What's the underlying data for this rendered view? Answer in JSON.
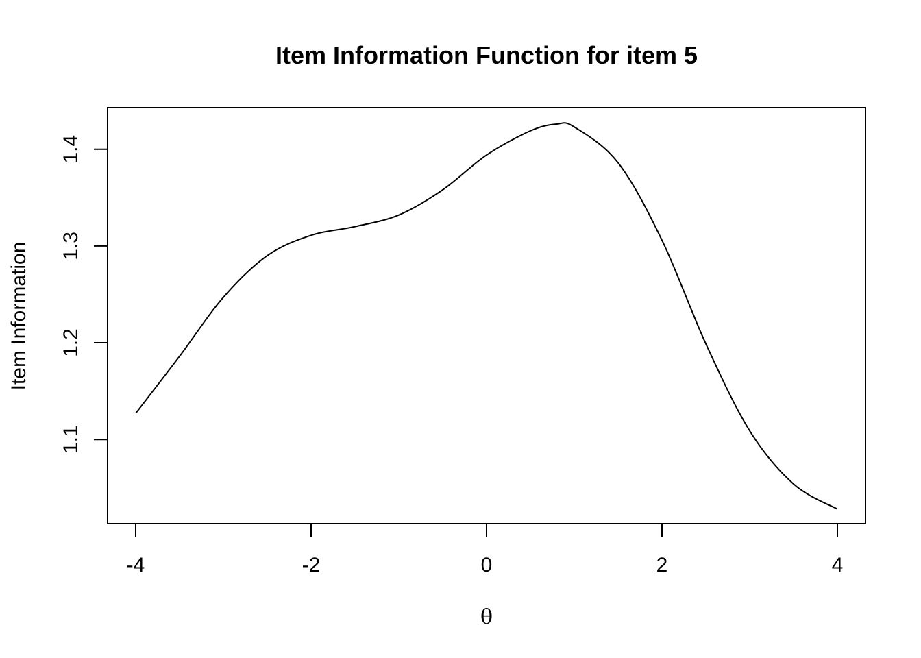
{
  "chart_data": {
    "type": "line",
    "title": "Item Information Function for item 5",
    "xlabel": "θ",
    "ylabel": "Item Information",
    "xlim": [
      -4,
      4
    ],
    "ylim": [
      1.013,
      1.443
    ],
    "x_ticks": [
      -4,
      -2,
      0,
      2,
      4
    ],
    "x_tick_labels": [
      "-4",
      "-2",
      "0",
      "2",
      "4"
    ],
    "y_ticks": [
      1.1,
      1.2,
      1.3,
      1.4
    ],
    "y_tick_labels": [
      "1.1",
      "1.2",
      "1.3",
      "1.4"
    ],
    "grid": false,
    "legend": "none",
    "series": [
      {
        "x": [
          -4,
          -3.5,
          -3,
          -2.5,
          -2,
          -1.5,
          -1,
          -0.5,
          0,
          0.5,
          0.8,
          1,
          1.5,
          2,
          2.5,
          3,
          3.5,
          4
        ],
        "y": [
          1.127,
          1.186,
          1.247,
          1.29,
          1.311,
          1.32,
          1.332,
          1.358,
          1.394,
          1.419,
          1.426,
          1.423,
          1.386,
          1.306,
          1.199,
          1.109,
          1.054,
          1.028
        ]
      }
    ]
  }
}
